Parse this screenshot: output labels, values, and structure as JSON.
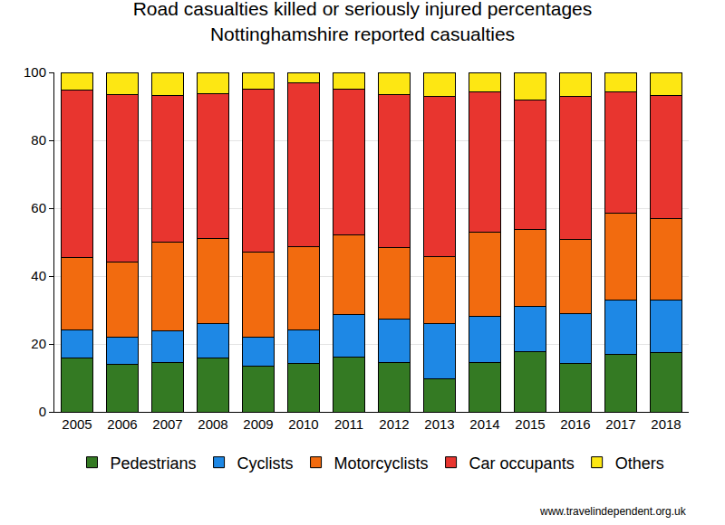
{
  "chart_data": {
    "type": "bar",
    "title": "Road casualties killed or seriously injured percentages",
    "subtitle": "Nottinghamshire reported casualties",
    "categories": [
      "2005",
      "2006",
      "2007",
      "2008",
      "2009",
      "2010",
      "2011",
      "2012",
      "2013",
      "2014",
      "2015",
      "2016",
      "2017",
      "2018"
    ],
    "series": [
      {
        "name": "Pedestrians",
        "color": "#347a23",
        "values": [
          16,
          14,
          14.5,
          16,
          13.4,
          14.2,
          16.2,
          14.6,
          9.8,
          14.6,
          17.8,
          14.3,
          17,
          17.5
        ]
      },
      {
        "name": "Cyclists",
        "color": "#1e88e5",
        "values": [
          8.2,
          8,
          9.5,
          10,
          8.6,
          10,
          12.4,
          12.8,
          16.2,
          13.6,
          13.4,
          14.7,
          16,
          15.5
        ]
      },
      {
        "name": "Motorcyclists",
        "color": "#f26b0f",
        "values": [
          21.2,
          22.2,
          26,
          25,
          25,
          24.6,
          23.5,
          21,
          19.8,
          24.8,
          22.6,
          21.8,
          25.5,
          23.9
        ]
      },
      {
        "name": "Car occupants",
        "color": "#e8352f",
        "values": [
          49.3,
          49.3,
          43.3,
          42.8,
          48.2,
          48.2,
          42.9,
          45.1,
          47.2,
          41.4,
          38.1,
          42.2,
          35.9,
          36.3
        ]
      },
      {
        "name": "Others",
        "color": "#fde713",
        "values": [
          5.3,
          6.5,
          6.7,
          6.2,
          4.8,
          3,
          5,
          6.5,
          7,
          5.6,
          8.1,
          7,
          5.6,
          6.8
        ]
      }
    ],
    "stacked": true,
    "ylim": [
      0,
      100
    ],
    "yticks": [
      0,
      20,
      40,
      60,
      80,
      100
    ],
    "grid": true,
    "legend": "bottom",
    "annotations": [
      "www.travelindependent.org.uk"
    ]
  }
}
